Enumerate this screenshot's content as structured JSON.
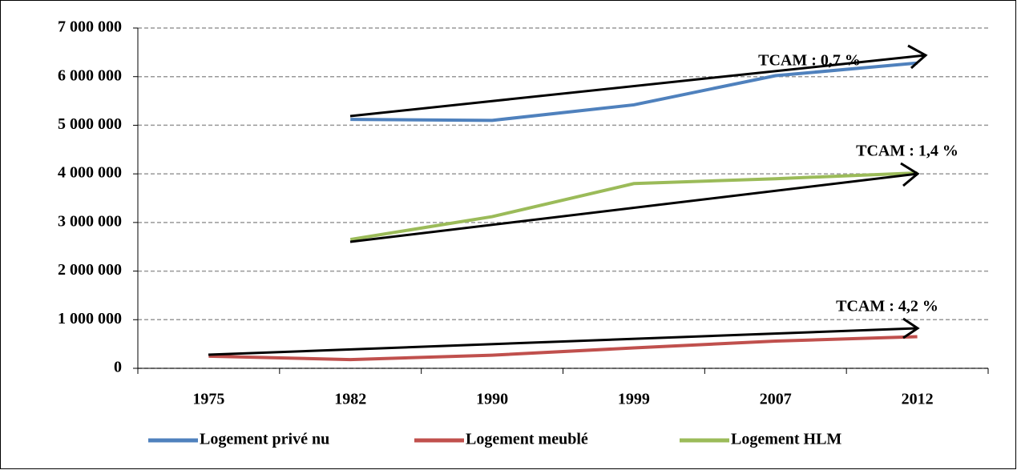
{
  "chart_data": {
    "type": "line",
    "categories": [
      "1975",
      "1982",
      "1990",
      "1999",
      "2007",
      "2012"
    ],
    "series": [
      {
        "name": "Logement privé nu",
        "color": "#4f81bd",
        "values": [
          null,
          5120000,
          5100000,
          5420000,
          6020000,
          6280000
        ]
      },
      {
        "name": "Logement meublé",
        "color": "#c0504d",
        "values": [
          250000,
          180000,
          270000,
          420000,
          560000,
          650000
        ]
      },
      {
        "name": "Logement HLM",
        "color": "#9bbb59",
        "values": [
          null,
          2650000,
          3120000,
          3800000,
          3900000,
          4020000
        ]
      }
    ],
    "ylim": [
      0,
      7000000
    ],
    "yticks": [
      0,
      {
        "value": 1000000,
        "label": "1 000 000"
      },
      {
        "value": 2000000,
        "label": "2 000 000"
      },
      {
        "value": 3000000,
        "label": "3 000 000"
      },
      {
        "value": 4000000,
        "label": "4 000 000"
      },
      {
        "value": 5000000,
        "label": "5 000 000"
      },
      {
        "value": 6000000,
        "label": "6 000 000"
      },
      {
        "value": 7000000,
        "label": "7 000 000"
      }
    ],
    "grid": true,
    "legend": "bottom",
    "annotations": [
      "TCAM : 0,7 %",
      "TCAM : 1,4 %",
      "TCAM : 4,2 %"
    ]
  }
}
